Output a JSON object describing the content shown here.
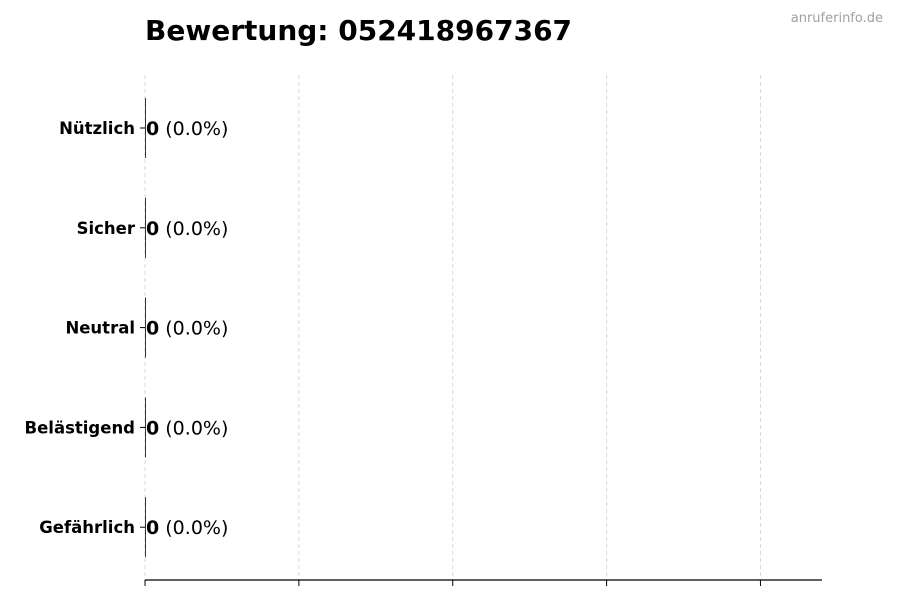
{
  "chart_data": {
    "type": "bar",
    "orientation": "horizontal",
    "title": "Bewertung: 052418967367",
    "watermark": "anruferinfo.de",
    "categories": [
      "Nützlich",
      "Sicher",
      "Neutral",
      "Belästigend",
      "Gefährlich"
    ],
    "values": [
      0,
      0,
      0,
      0,
      0
    ],
    "value_labels": [
      "0",
      "0",
      "0",
      "0",
      "0"
    ],
    "percent_labels": [
      "(0.0%)",
      "(0.0%)",
      "(0.0%)",
      "(0.0%)",
      "(0.0%)"
    ],
    "xlabel": "",
    "ylabel": "",
    "xlim": [
      0,
      4.4
    ],
    "x_ticks": [
      0,
      1,
      2,
      3,
      4
    ],
    "x_tick_labels_shown": false,
    "grid": "vertical dashed",
    "legend": "none",
    "colors": {
      "bar": "#333333",
      "grid": "#d9d9d9",
      "watermark": "#a0a0a0"
    }
  }
}
